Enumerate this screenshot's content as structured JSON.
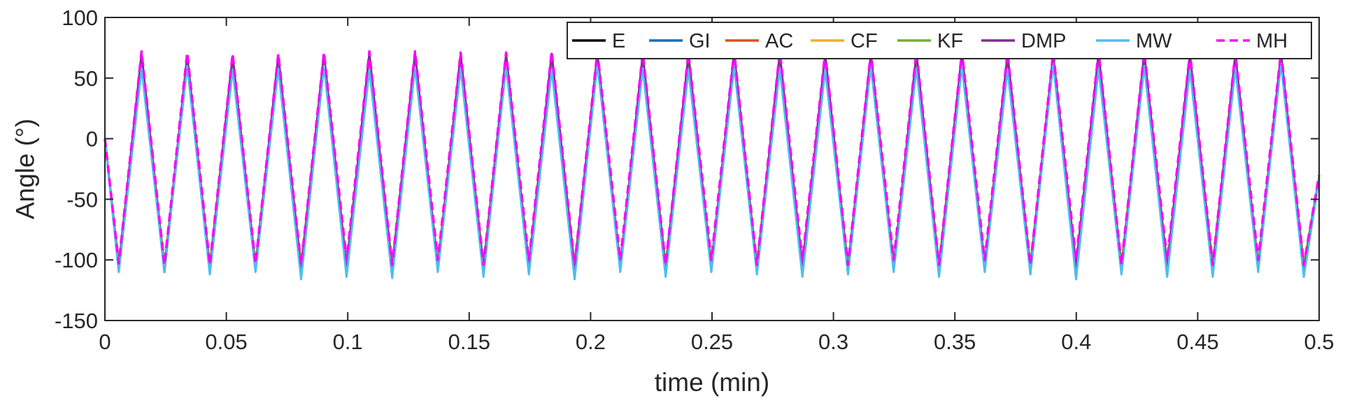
{
  "chart_data": {
    "type": "line",
    "title": "",
    "xlabel": "time (min)",
    "ylabel": "Angle (°)",
    "xlim": [
      0,
      0.5
    ],
    "ylim": [
      -150,
      100
    ],
    "grid": false,
    "legend_position": "top-right",
    "x_ticks": [
      "0",
      "0.05",
      "0.1",
      "0.15",
      "0.2",
      "0.25",
      "0.3",
      "0.35",
      "0.4",
      "0.45",
      "0.5"
    ],
    "y_ticks": [
      "100",
      "50",
      "0",
      "-50",
      "-100",
      "-150"
    ],
    "x_tick_values": [
      0,
      0.05,
      0.1,
      0.15,
      0.2,
      0.25,
      0.3,
      0.35,
      0.4,
      0.45,
      0.5
    ],
    "y_tick_values": [
      100,
      50,
      0,
      -50,
      -100,
      -150
    ],
    "x": [
      0,
      0.0057,
      0.0151,
      0.0245,
      0.0339,
      0.0432,
      0.0526,
      0.062,
      0.0714,
      0.0808,
      0.0902,
      0.0995,
      0.1089,
      0.1183,
      0.1277,
      0.1371,
      0.1465,
      0.1559,
      0.1652,
      0.1746,
      0.184,
      0.1934,
      0.2028,
      0.2122,
      0.2215,
      0.2309,
      0.2403,
      0.2497,
      0.2591,
      0.2685,
      0.2779,
      0.2872,
      0.2966,
      0.306,
      0.3154,
      0.3248,
      0.3342,
      0.3435,
      0.3529,
      0.3623,
      0.3717,
      0.3811,
      0.3905,
      0.3999,
      0.4092,
      0.4186,
      0.428,
      0.4374,
      0.4468,
      0.4562,
      0.4655,
      0.4749,
      0.4843,
      0.4937,
      0.5
    ],
    "series": [
      {
        "name": "E",
        "color": "#000000",
        "dash": "solid",
        "values": [
          0,
          -108,
          70,
          -110,
          68,
          -110,
          68,
          -108,
          68,
          -110,
          69,
          -108,
          70,
          -110,
          70,
          -108,
          69,
          -110,
          69,
          -108,
          70,
          -110,
          70,
          -108,
          69,
          -110,
          69,
          -108,
          70,
          -110,
          70,
          -108,
          69,
          -110,
          69,
          -108,
          70,
          -110,
          70,
          -108,
          69,
          -110,
          69,
          -108,
          70,
          -110,
          70,
          -108,
          69,
          -110,
          69,
          -108,
          70,
          -110,
          -33
        ]
      },
      {
        "name": "GI",
        "color": "#0072BD",
        "dash": "solid",
        "values": [
          0,
          -108,
          69,
          -109,
          67,
          -109,
          67,
          -107,
          67,
          -109,
          68,
          -107,
          69,
          -109,
          69,
          -107,
          68,
          -109,
          68,
          -107,
          69,
          -109,
          69,
          -107,
          68,
          -109,
          68,
          -107,
          69,
          -109,
          69,
          -107,
          68,
          -109,
          68,
          -107,
          69,
          -109,
          69,
          -107,
          68,
          -109,
          68,
          -107,
          69,
          -109,
          69,
          -107,
          68,
          -109,
          68,
          -107,
          69,
          -109,
          -32
        ]
      },
      {
        "name": "AC",
        "color": "#D95319",
        "dash": "solid",
        "values": [
          0,
          -107,
          69,
          -109,
          67,
          -109,
          67,
          -107,
          67,
          -109,
          68,
          -107,
          69,
          -109,
          69,
          -107,
          68,
          -109,
          68,
          -107,
          69,
          -109,
          69,
          -107,
          68,
          -109,
          68,
          -107,
          69,
          -109,
          69,
          -107,
          68,
          -109,
          68,
          -107,
          69,
          -109,
          69,
          -107,
          68,
          -109,
          68,
          -107,
          69,
          -109,
          69,
          -107,
          68,
          -109,
          68,
          -107,
          69,
          -109,
          -32
        ]
      },
      {
        "name": "CF",
        "color": "#EDB120",
        "dash": "solid",
        "values": [
          0,
          -106,
          68,
          -108,
          66,
          -108,
          66,
          -106,
          66,
          -108,
          67,
          -106,
          68,
          -108,
          68,
          -106,
          67,
          -108,
          67,
          -106,
          68,
          -108,
          68,
          -106,
          67,
          -108,
          67,
          -106,
          68,
          -108,
          68,
          -106,
          67,
          -108,
          67,
          -106,
          68,
          -108,
          68,
          -106,
          67,
          -108,
          67,
          -106,
          68,
          -108,
          68,
          -106,
          67,
          -108,
          67,
          -106,
          68,
          -108,
          -32
        ]
      },
      {
        "name": "KF",
        "color": "#77AC30",
        "dash": "solid",
        "values": [
          0,
          -103,
          66,
          -104,
          64,
          -104,
          64,
          -103,
          64,
          -104,
          65,
          -103,
          66,
          -104,
          66,
          -103,
          65,
          -104,
          65,
          -103,
          66,
          -104,
          66,
          -103,
          65,
          -104,
          65,
          -103,
          66,
          -104,
          66,
          -103,
          65,
          -104,
          65,
          -103,
          66,
          -104,
          66,
          -103,
          65,
          -104,
          65,
          -103,
          66,
          -104,
          66,
          -103,
          65,
          -104,
          65,
          -103,
          66,
          -104,
          -31
        ]
      },
      {
        "name": "DMP",
        "color": "#7E2F8E",
        "dash": "solid",
        "values": [
          0,
          -108,
          70,
          -110,
          68,
          -110,
          68,
          -108,
          68,
          -110,
          69,
          -108,
          70,
          -110,
          70,
          -108,
          69,
          -110,
          69,
          -108,
          70,
          -110,
          70,
          -108,
          69,
          -110,
          69,
          -108,
          70,
          -110,
          70,
          -108,
          69,
          -110,
          69,
          -108,
          70,
          -110,
          70,
          -108,
          69,
          -110,
          69,
          -108,
          70,
          -110,
          70,
          -108,
          69,
          -110,
          69,
          -108,
          70,
          -110,
          -33
        ]
      },
      {
        "name": "MW",
        "color": "#4DBEEE",
        "dash": "solid",
        "values": [
          0,
          -110,
          58,
          -110,
          60,
          -112,
          57,
          -110,
          58,
          -116,
          60,
          -114,
          57,
          -115,
          59,
          -110,
          58,
          -114,
          60,
          -112,
          57,
          -116,
          62,
          -110,
          58,
          -114,
          57,
          -110,
          60,
          -112,
          58,
          -114,
          57,
          -112,
          60,
          -110,
          58,
          -114,
          60,
          -110,
          57,
          -112,
          62,
          -116,
          58,
          -112,
          60,
          -114,
          57,
          -114,
          58,
          -110,
          62,
          -114,
          -33
        ]
      },
      {
        "name": "MH",
        "color": "#FF00FF",
        "dash": "dashed",
        "values": [
          0,
          -103,
          72,
          -104,
          71,
          -104,
          70,
          -103,
          70,
          -104,
          71,
          -100,
          72,
          -104,
          72,
          -100,
          71,
          -104,
          71,
          -100,
          72,
          -104,
          72,
          -100,
          71,
          -104,
          71,
          -100,
          72,
          -104,
          72,
          -100,
          71,
          -104,
          71,
          -100,
          72,
          -104,
          72,
          -100,
          71,
          -104,
          71,
          -100,
          72,
          -104,
          72,
          -100,
          71,
          -104,
          71,
          -100,
          72,
          -104,
          -30
        ]
      }
    ]
  }
}
